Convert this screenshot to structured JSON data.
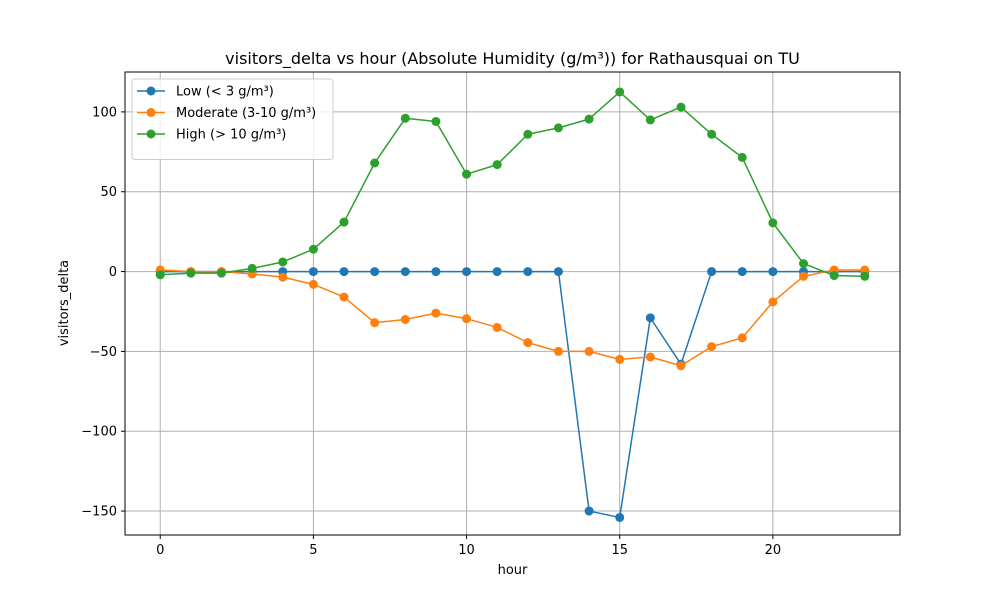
{
  "chart_data": {
    "type": "line",
    "title": "visitors_delta vs hour (Absolute Humidity (g/m³)) for Rathausquai on TU",
    "xlabel": "hour",
    "ylabel": "visitors_delta",
    "xlim": [
      -1.15,
      24.15
    ],
    "ylim": [
      -165,
      125
    ],
    "xticks": [
      0,
      5,
      10,
      15,
      20
    ],
    "yticks": [
      -150,
      -100,
      -50,
      0,
      50,
      100
    ],
    "grid": true,
    "legend_position": "top-left",
    "x": [
      0,
      1,
      2,
      3,
      4,
      5,
      6,
      7,
      8,
      9,
      10,
      11,
      12,
      13,
      14,
      15,
      16,
      17,
      18,
      19,
      20,
      21,
      22,
      23
    ],
    "series": [
      {
        "name": "Low (< 3 g/m³)",
        "color": "#1f77b4",
        "values": [
          0,
          0,
          0,
          0,
          0,
          0,
          0,
          0,
          0,
          0,
          0,
          0,
          0,
          0,
          -150,
          -154,
          -29,
          -58,
          0,
          0,
          0,
          0,
          0,
          0
        ]
      },
      {
        "name": "Moderate (3-10 g/m³)",
        "color": "#ff7f0e",
        "values": [
          1,
          0,
          0,
          -1.5,
          -3.5,
          -8,
          -16,
          -32,
          -30,
          -26,
          -29.5,
          -35,
          -44.5,
          -50,
          -50,
          -55,
          -53.5,
          -59,
          -47,
          -41.5,
          -19,
          -3,
          1,
          1
        ]
      },
      {
        "name": "High (> 10 g/m³)",
        "color": "#2ca02c",
        "values": [
          -2,
          -1,
          -1,
          2,
          6,
          14,
          31,
          68,
          96,
          94,
          61,
          67,
          86,
          90,
          95.5,
          112.5,
          95,
          103,
          86,
          71.5,
          30.5,
          5,
          -2.5,
          -3
        ]
      }
    ]
  }
}
